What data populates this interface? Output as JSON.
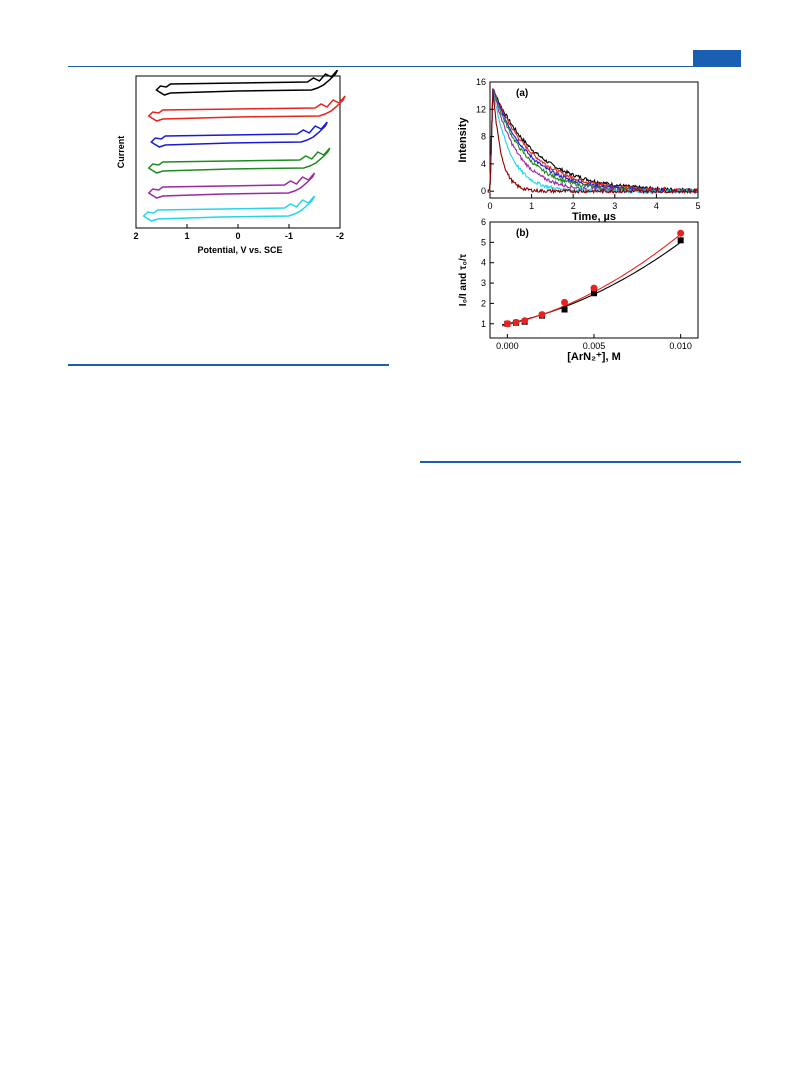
{
  "page": {
    "accent": "#1f5fa8",
    "tab_color": "#1a5fb4"
  },
  "chart_data": [
    {
      "type": "line",
      "title": "",
      "xlabel": "Potential, V vs. SCE",
      "ylabel": "Current",
      "x_ticks": [
        "2",
        "1",
        "0",
        "-1",
        "-2"
      ],
      "xlim": [
        2,
        -2
      ],
      "grid": false,
      "series": [
        {
          "color": "#000000"
        },
        {
          "color": "#e8221c"
        },
        {
          "color": "#1a1ad6"
        },
        {
          "color": "#1e8c1e"
        },
        {
          "color": "#9a2aa0"
        },
        {
          "color": "#22d6e8"
        }
      ]
    },
    {
      "type": "line",
      "panel_label": "(a)",
      "xlabel": "Time, µs",
      "ylabel": "Intensity",
      "xlim": [
        0,
        5
      ],
      "ylim": [
        -1,
        16
      ],
      "x_ticks": [
        "0",
        "1",
        "2",
        "3",
        "4",
        "5"
      ],
      "y_ticks": [
        "0",
        "4",
        "8",
        "12",
        "16"
      ],
      "grid": false,
      "peak": {
        "x": 0.07,
        "y": 15
      },
      "series": [
        {
          "color": "#000000",
          "tau": 1.05
        },
        {
          "color": "#e8221c",
          "tau": 0.95
        },
        {
          "color": "#1a1ad6",
          "tau": 0.85
        },
        {
          "color": "#1e8c1e",
          "tau": 0.75
        },
        {
          "color": "#9a2aa0",
          "tau": 0.6
        },
        {
          "color": "#22d6e8",
          "tau": 0.42
        },
        {
          "color": "#8b0000",
          "tau": 0.2
        }
      ]
    },
    {
      "type": "scatter",
      "panel_label": "(b)",
      "xlabel": "[ArN₂⁺], M",
      "ylabel": "I₀/I and τ₀/τ",
      "xlim": [
        -0.001,
        0.011
      ],
      "ylim": [
        0.3,
        6
      ],
      "x_ticks": [
        "0.000",
        "0.005",
        "0.010"
      ],
      "y_ticks": [
        "1",
        "2",
        "3",
        "4",
        "5",
        "6"
      ],
      "grid": false,
      "series": [
        {
          "color": "#000000",
          "marker": "square",
          "x": [
            0.0,
            0.0005,
            0.001,
            0.002,
            0.0033,
            0.005,
            0.01
          ],
          "y": [
            1.0,
            1.05,
            1.1,
            1.4,
            1.7,
            2.5,
            5.1
          ],
          "fit": [
            1.0,
            180,
            22000
          ]
        },
        {
          "color": "#e8221c",
          "marker": "circle",
          "x": [
            0.0,
            0.0005,
            0.001,
            0.002,
            0.0033,
            0.005,
            0.01
          ],
          "y": [
            1.0,
            1.07,
            1.15,
            1.45,
            2.05,
            2.75,
            5.45
          ],
          "fit": [
            0.95,
            200,
            24500
          ]
        }
      ]
    }
  ]
}
